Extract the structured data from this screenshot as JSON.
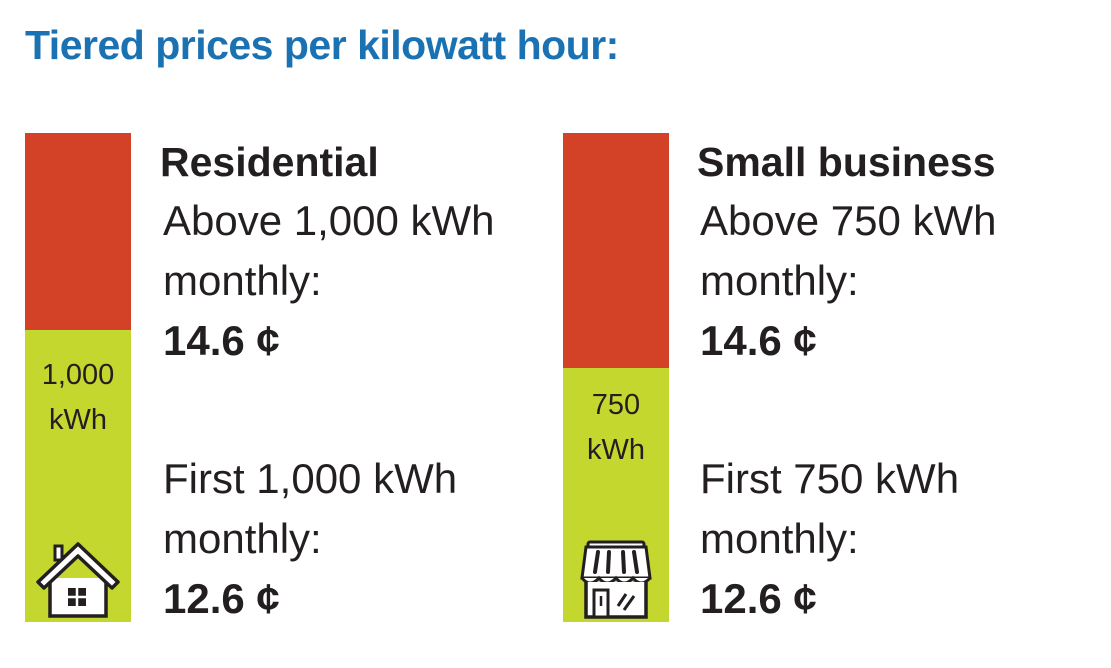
{
  "title": "Tiered prices per kilowatt hour:",
  "colors": {
    "title": "#1a72b3",
    "upper_tier": "#d34127",
    "lower_tier": "#c4d72f"
  },
  "panels": [
    {
      "heading": "Residential",
      "icon": "house-icon",
      "threshold_label": [
        "1,000",
        "kWh"
      ],
      "upper": {
        "line1": "Above 1,000 kWh",
        "line2": "monthly:",
        "price": "14.6 ¢"
      },
      "lower": {
        "line1": "First 1,000 kWh",
        "line2": "monthly:",
        "price": "12.6 ¢"
      }
    },
    {
      "heading": "Small business",
      "icon": "storefront-icon",
      "threshold_label": [
        "750",
        "kWh"
      ],
      "upper": {
        "line1": "Above 750 kWh",
        "line2": "monthly:",
        "price": "14.6 ¢"
      },
      "lower": {
        "line1": "First 750 kWh",
        "line2": "monthly:",
        "price": "12.6 ¢"
      }
    }
  ]
}
